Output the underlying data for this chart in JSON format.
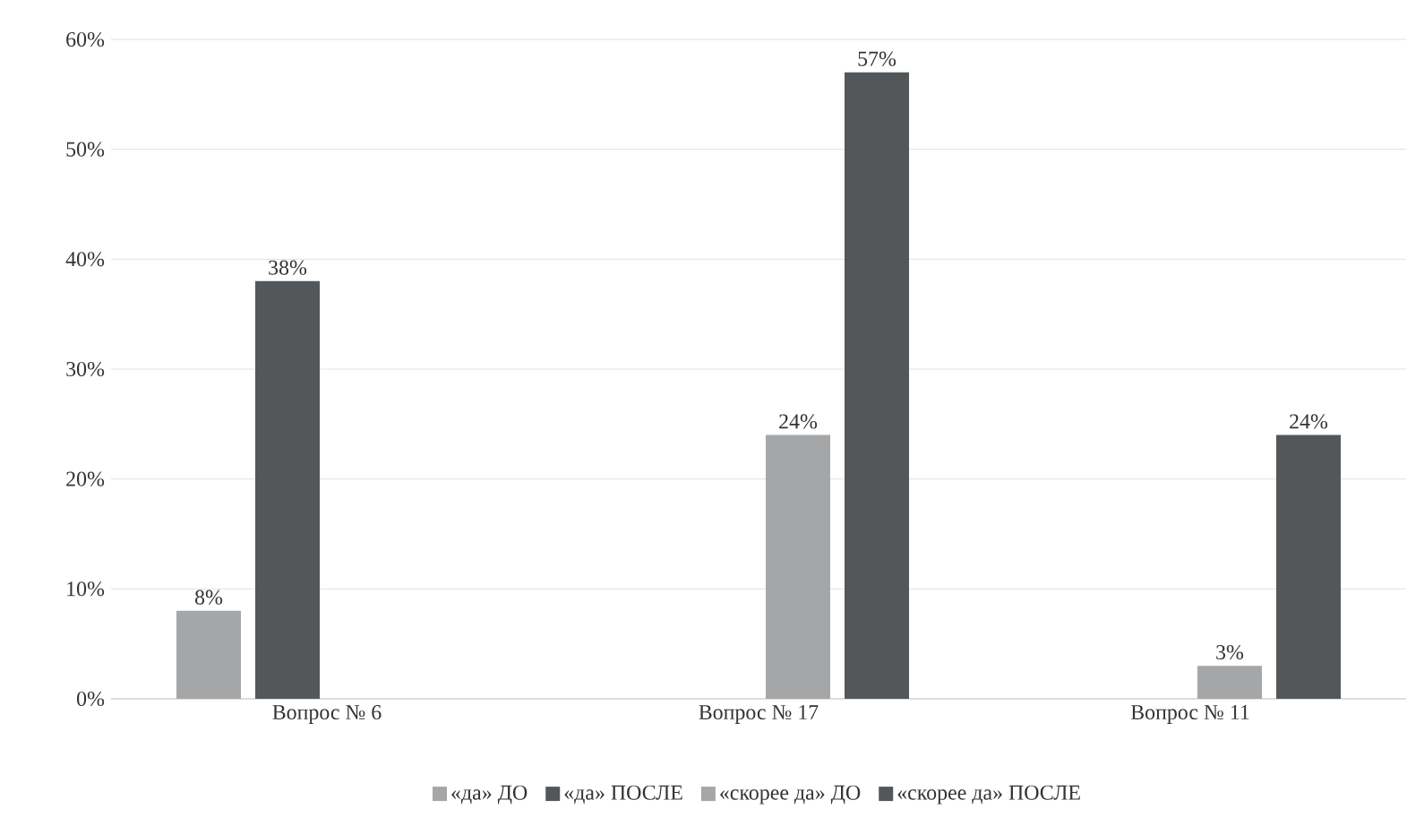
{
  "chart_data": {
    "type": "bar",
    "categories": [
      "Вопрос № 6",
      "Вопрос № 17",
      "Вопрос № 11"
    ],
    "series": [
      {
        "name": "«да» ДО",
        "color": "#a5a6a8",
        "values": [
          8,
          null,
          null
        ],
        "value_labels": [
          "8%",
          null,
          null
        ]
      },
      {
        "name": "«да» ПОСЛЕ",
        "color": "#54575a",
        "values": [
          38,
          null,
          null
        ],
        "value_labels": [
          "38%",
          null,
          null
        ]
      },
      {
        "name": "«скорее да» ДО",
        "color": "#a5a6a8",
        "values": [
          null,
          24,
          3
        ],
        "value_labels": [
          null,
          "24%",
          "3%"
        ]
      },
      {
        "name": "«скорее да» ПОСЛЕ",
        "color": "#54575a",
        "values": [
          null,
          57,
          24
        ],
        "value_labels": [
          null,
          "57%",
          "24%"
        ]
      }
    ],
    "ylim": [
      0,
      60
    ],
    "yticks": [
      {
        "value": 0,
        "label": "0%"
      },
      {
        "value": 10,
        "label": "10%"
      },
      {
        "value": 20,
        "label": "20%"
      },
      {
        "value": 30,
        "label": "30%"
      },
      {
        "value": 40,
        "label": "40%"
      },
      {
        "value": 50,
        "label": "50%"
      },
      {
        "value": 60,
        "label": "60%"
      }
    ],
    "grid": "y",
    "legend": "bottom"
  }
}
